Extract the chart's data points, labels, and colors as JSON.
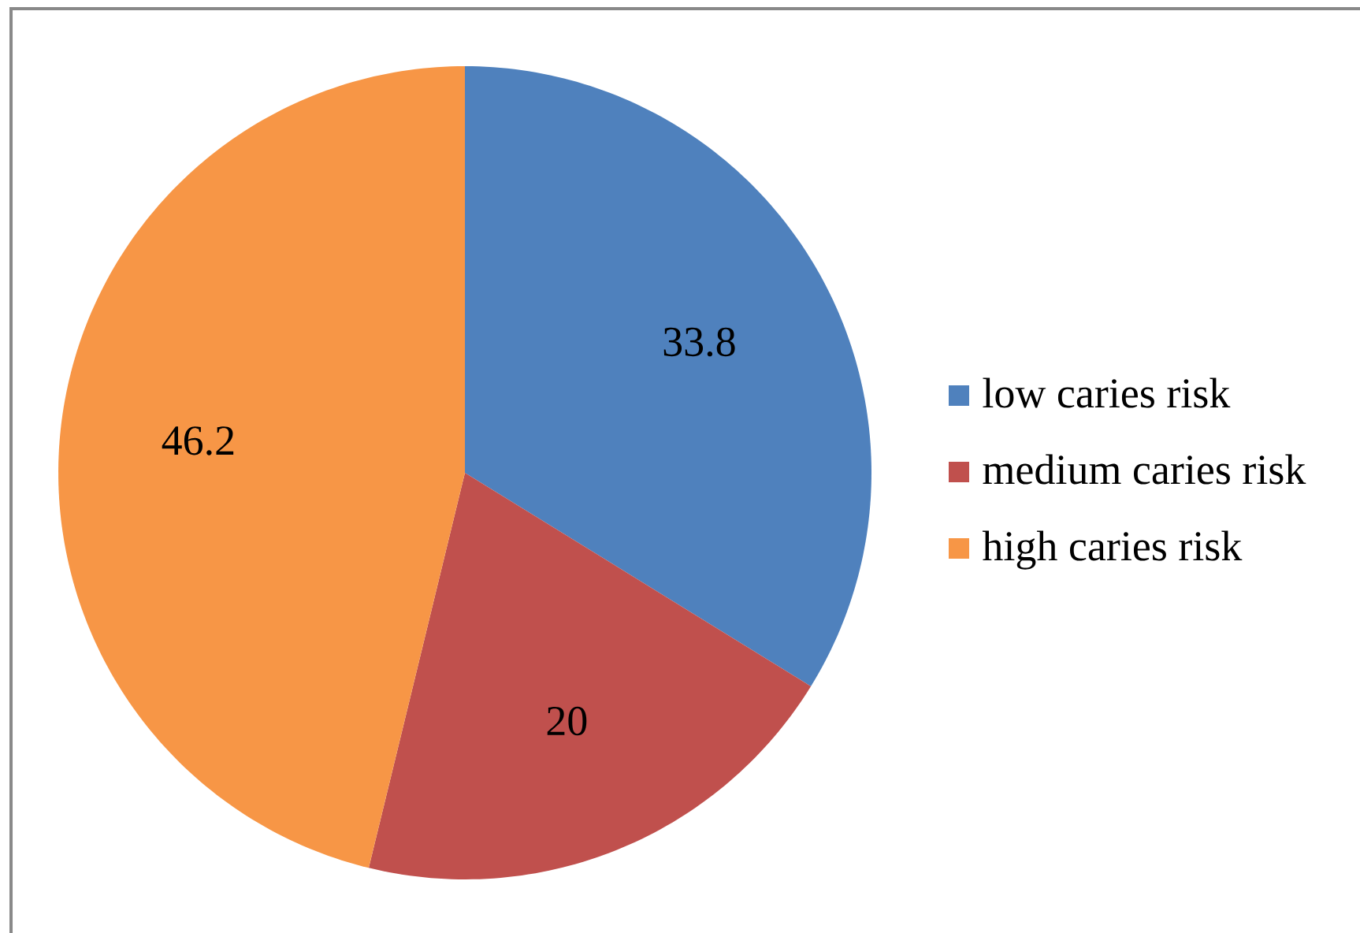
{
  "chart_data": {
    "type": "pie",
    "categories": [
      "low caries risk",
      "medium caries risk",
      "high caries risk"
    ],
    "values": [
      33.8,
      20,
      46.2
    ],
    "colors": [
      "#4f81bd",
      "#c0504d",
      "#f79646"
    ],
    "data_labels": true,
    "legend": "right"
  }
}
